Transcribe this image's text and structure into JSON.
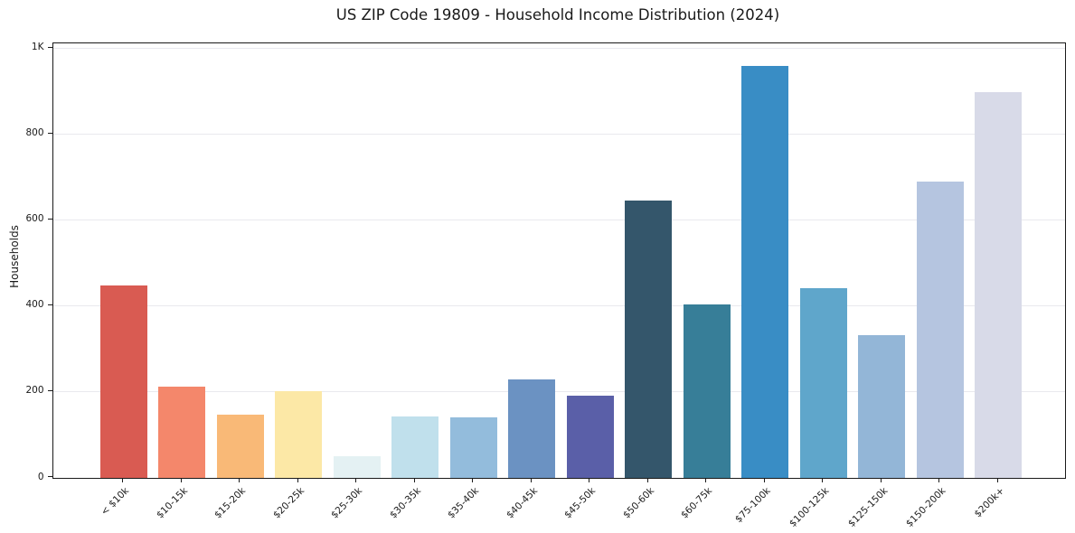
{
  "chart_data": {
    "type": "bar",
    "title": "US ZIP Code 19809 - Household Income Distribution (2024)",
    "xlabel": "",
    "ylabel": "Households",
    "categories": [
      "< $10k",
      "$10-15k",
      "$15-20k",
      "$20-25k",
      "$25-30k",
      "$30-35k",
      "$35-40k",
      "$40-45k",
      "$45-50k",
      "$50-60k",
      "$60-75k",
      "$75-100k",
      "$100-125k",
      "$125-150k",
      "$150-200k",
      "$200k+"
    ],
    "values": [
      447,
      212,
      146,
      202,
      50,
      141,
      139,
      229,
      190,
      645,
      402,
      958,
      440,
      331,
      690,
      897
    ],
    "bar_colors": [
      "#d95b52",
      "#f4876b",
      "#f9b977",
      "#fce8a6",
      "#e4f1f3",
      "#c0e0ec",
      "#93bcdc",
      "#6b92c2",
      "#5a5fa8",
      "#34566b",
      "#377e98",
      "#398dc5",
      "#5fa6cb",
      "#93b6d7",
      "#b5c5e0",
      "#d8dae8"
    ],
    "ylim": [
      0,
      1012
    ],
    "yticks": [
      {
        "value": 0,
        "label": "0"
      },
      {
        "value": 200,
        "label": "200"
      },
      {
        "value": 400,
        "label": "400"
      },
      {
        "value": 600,
        "label": "600"
      },
      {
        "value": 800,
        "label": "800"
      },
      {
        "value": 1000,
        "label": "1K"
      }
    ],
    "grid": "horizontal",
    "legend": "none",
    "colors": {
      "background": "#ffffff",
      "gridline": "#e9e9ee",
      "spine": "#1a1a1a",
      "text": "#1a1a1a"
    }
  }
}
